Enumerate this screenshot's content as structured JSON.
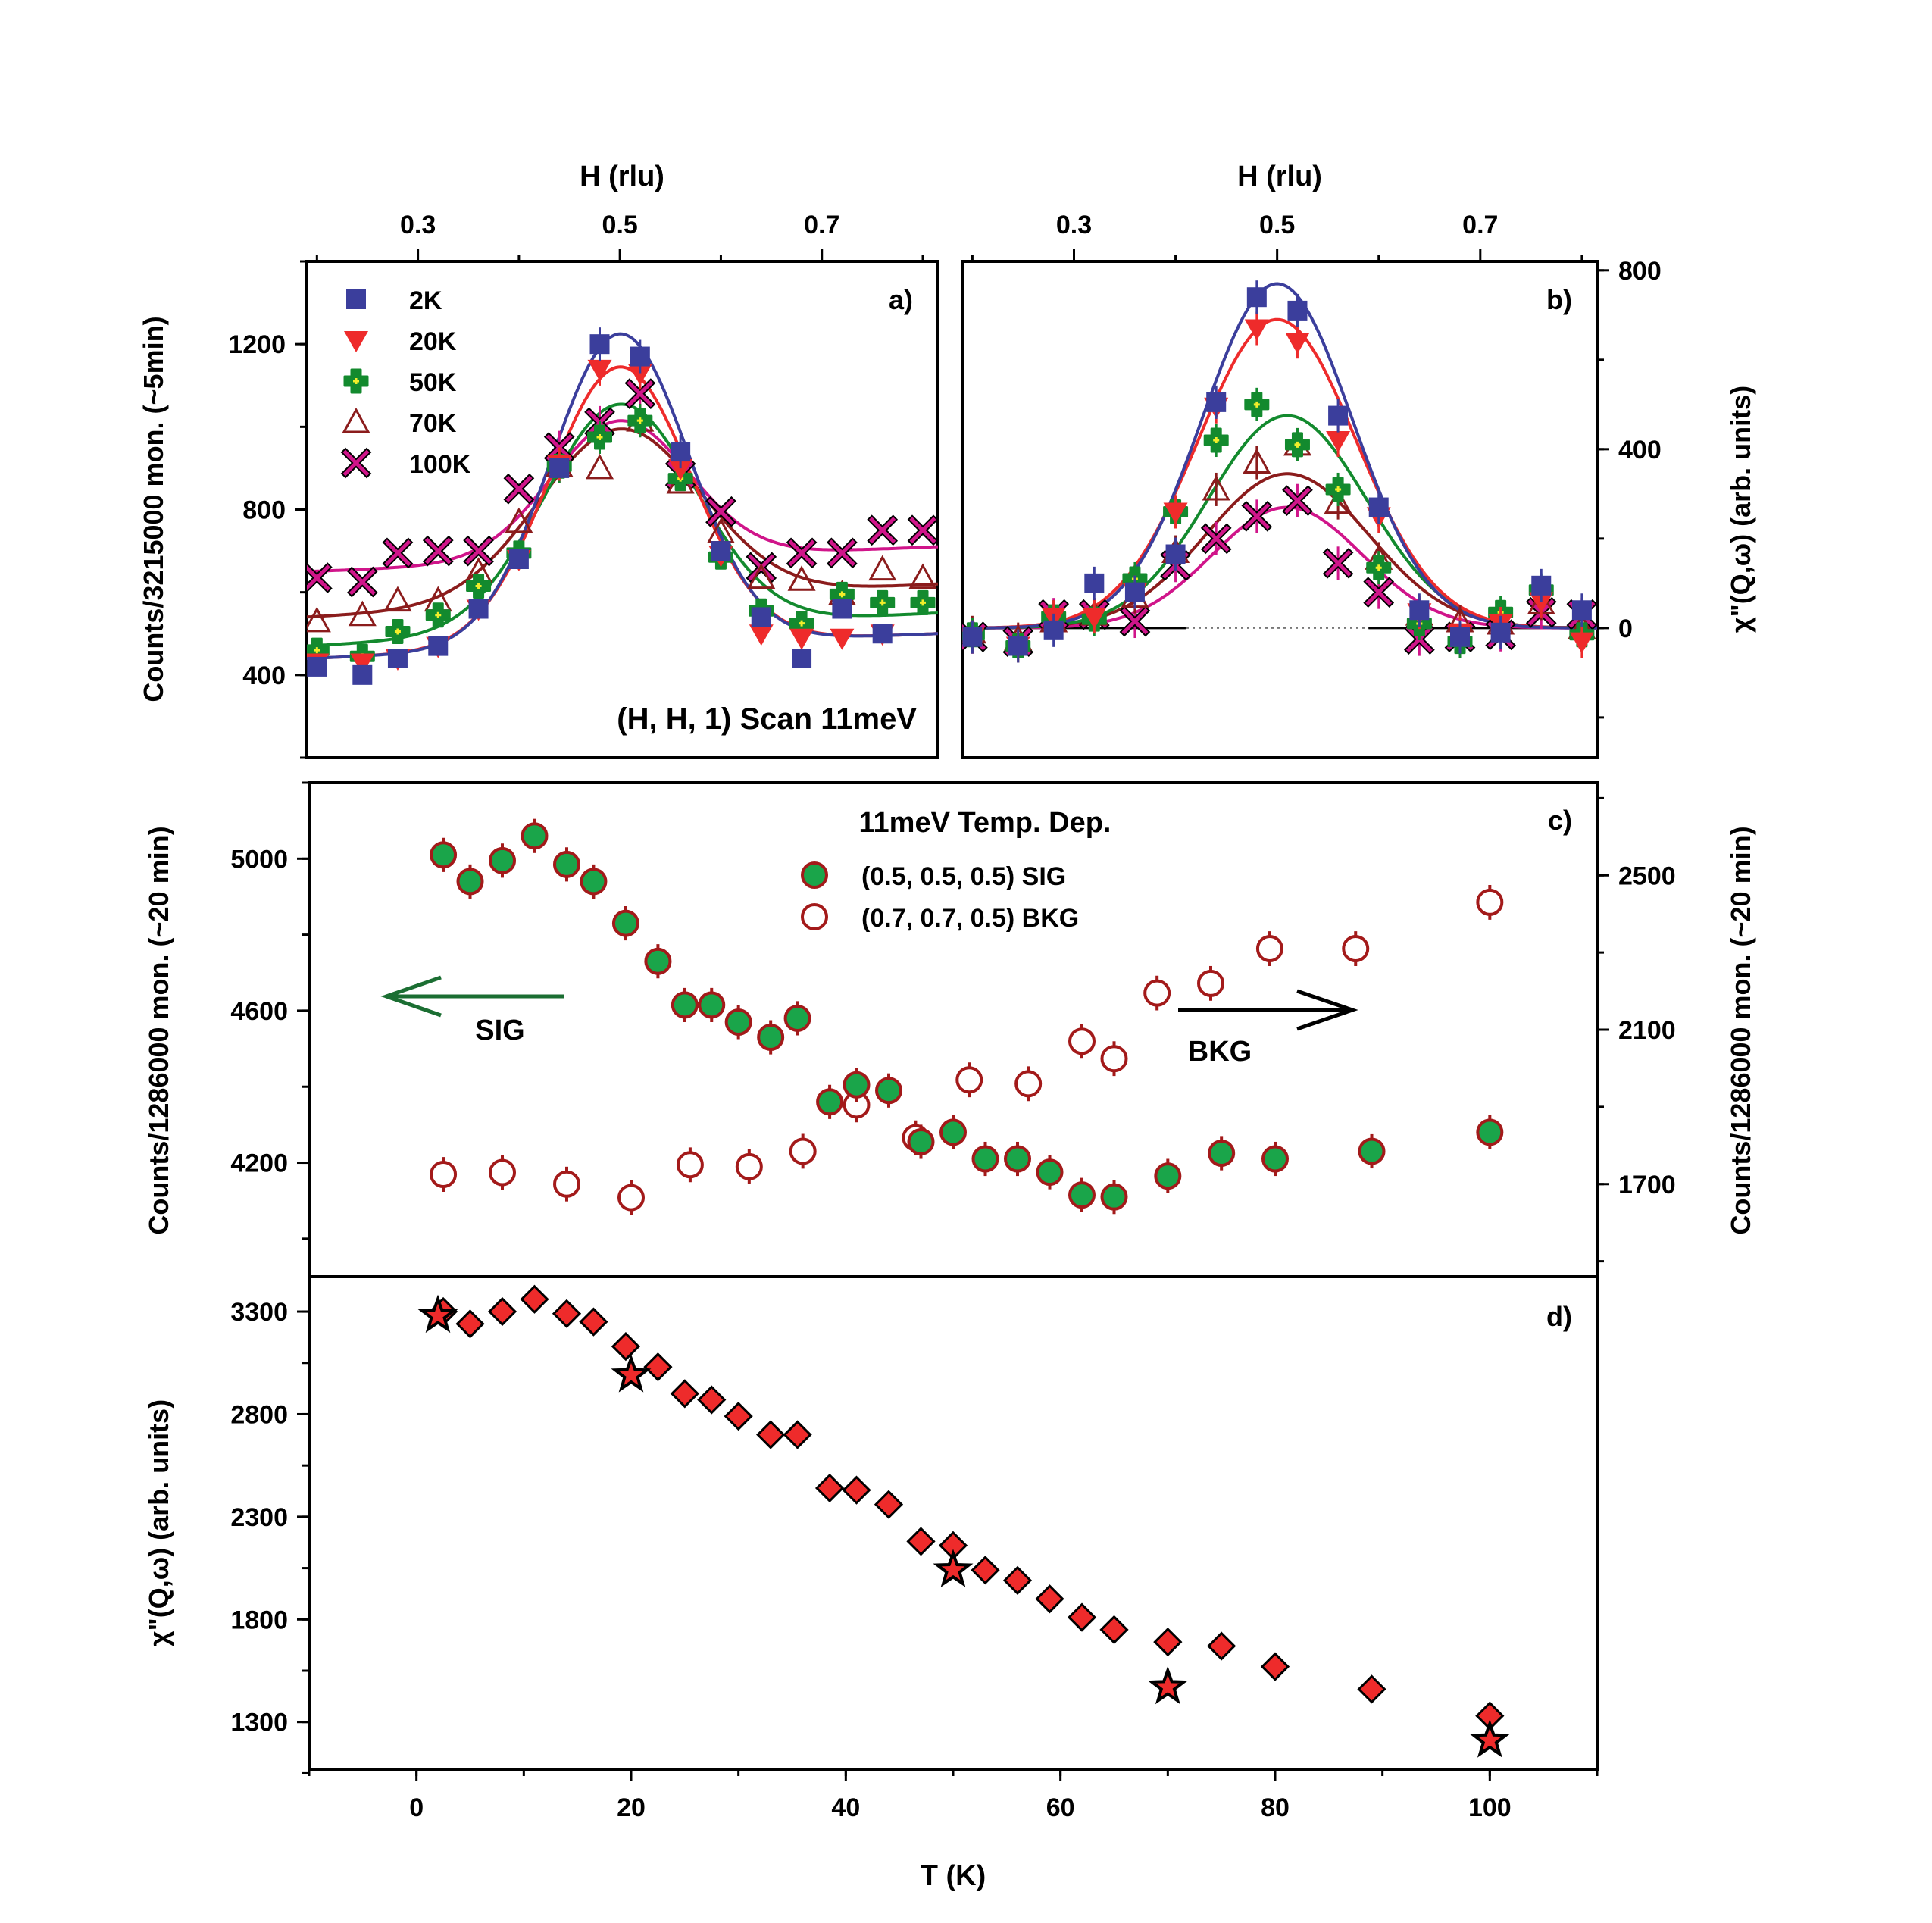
{
  "colors": {
    "k2": "#3b3e9c",
    "k20": "#ee2b2b",
    "k50": "#138a2e",
    "k70": "#8b1c1c",
    "k100": "#d0158a",
    "sig_fill": "#1aa54a",
    "bkg_stroke": "#a31a1a",
    "arrow_sig": "#1b6e32",
    "diamond": "#ee2b2b"
  },
  "chart_data": [
    {
      "panel": "a)",
      "type": "scatter",
      "title": "(H, H, 1) Scan 11meV",
      "xlabel": "H (rlu)",
      "ylabel": "Counts/3215000 mon. (~5min)",
      "xlim": [
        0.19,
        0.815
      ],
      "ylim": [
        200,
        1400
      ],
      "xticks": [
        "0.3",
        "0.5",
        "0.7"
      ],
      "yticks": [
        "400",
        "800",
        "1200"
      ],
      "legend": [
        "2K",
        "20K",
        "50K",
        "70K",
        "100K"
      ],
      "legend_position": "top-left",
      "x": [
        0.2,
        0.245,
        0.28,
        0.32,
        0.36,
        0.4,
        0.44,
        0.48,
        0.52,
        0.56,
        0.6,
        0.64,
        0.68,
        0.72,
        0.76,
        0.8
      ],
      "series": [
        {
          "name": "2K",
          "marker": "square",
          "values": [
            420,
            400,
            440,
            470,
            560,
            680,
            900,
            1200,
            1170,
            940,
            700,
            540,
            440,
            560,
            500,
            null
          ],
          "fit": {
            "A": 755,
            "c": 0.5,
            "w": 0.068,
            "b0": 440,
            "b1": 60
          }
        },
        {
          "name": "20K",
          "marker": "triangle-down",
          "values": [
            430,
            430,
            440,
            470,
            560,
            680,
            910,
            1140,
            1130,
            900,
            690,
            500,
            490,
            490,
            500,
            null
          ],
          "fit": {
            "A": 675,
            "c": 0.5,
            "w": 0.07,
            "b0": 440,
            "b1": 60
          }
        },
        {
          "name": "50K",
          "marker": "plus-circle",
          "values": [
            460,
            445,
            505,
            545,
            615,
            695,
            905,
            975,
            1015,
            875,
            685,
            555,
            525,
            595,
            575,
            575
          ],
          "fit": {
            "A": 545,
            "c": 0.5,
            "w": 0.075,
            "b0": 470,
            "b1": 80
          }
        },
        {
          "name": "70K",
          "marker": "triangle-up",
          "values": [
            530,
            545,
            580,
            580,
            650,
            770,
            905,
            900,
            1015,
            865,
            745,
            635,
            630,
            595,
            655,
            635
          ],
          "fit": {
            "A": 415,
            "c": 0.5,
            "w": 0.08,
            "b0": 540,
            "b1": 80
          }
        },
        {
          "name": "100K",
          "marker": "x-square",
          "values": [
            635,
            625,
            695,
            700,
            700,
            850,
            950,
            1010,
            1080,
            885,
            795,
            660,
            695,
            695,
            750,
            750
          ],
          "fit": {
            "A": 335,
            "c": 0.5,
            "w": 0.068,
            "b0": 650,
            "b1": 60
          }
        }
      ]
    },
    {
      "panel": "b)",
      "type": "scatter",
      "xlabel": "H (rlu)",
      "ylabel": "χ\"(Q,ω) (arb. units)",
      "xlim": [
        0.19,
        0.815
      ],
      "ylim": [
        -290,
        820
      ],
      "xticks": [
        "0.3",
        "0.5",
        "0.7"
      ],
      "yticks": [
        "0",
        "400",
        "800"
      ],
      "x": [
        0.2,
        0.245,
        0.28,
        0.32,
        0.36,
        0.4,
        0.44,
        0.48,
        0.52,
        0.56,
        0.6,
        0.64,
        0.68,
        0.72,
        0.76,
        0.8
      ],
      "series": [
        {
          "name": "2K",
          "marker": "square",
          "values": [
            -20,
            -40,
            -5,
            100,
            80,
            165,
            505,
            740,
            710,
            475,
            270,
            40,
            -20,
            -10,
            95,
            40
          ],
          "fit": {
            "A": 770,
            "c": 0.5,
            "w": 0.074
          }
        },
        {
          "name": "20K",
          "marker": "triangle-down",
          "values": [
            -20,
            -40,
            25,
            25,
            80,
            260,
            495,
            670,
            640,
            420,
            250,
            35,
            -10,
            10,
            60,
            -30
          ],
          "fit": {
            "A": 690,
            "c": 0.5,
            "w": 0.078
          }
        },
        {
          "name": "50K",
          "marker": "plus-circle",
          "values": [
            -15,
            -40,
            25,
            20,
            110,
            260,
            420,
            500,
            410,
            310,
            135,
            10,
            -30,
            35,
            85,
            -15
          ],
          "fit": {
            "A": 475,
            "c": 0.51,
            "w": 0.078
          }
        },
        {
          "name": "70K",
          "marker": "triangle-up",
          "values": [
            -10,
            -25,
            15,
            30,
            70,
            170,
            310,
            370,
            410,
            280,
            155,
            30,
            15,
            10,
            55,
            0
          ],
          "fit": {
            "A": 345,
            "c": 0.51,
            "w": 0.08
          }
        },
        {
          "name": "100K",
          "marker": "x-square",
          "values": [
            -20,
            -30,
            30,
            30,
            15,
            140,
            200,
            250,
            285,
            145,
            80,
            -25,
            -20,
            -15,
            35,
            30
          ],
          "fit": {
            "A": 270,
            "c": 0.51,
            "w": 0.074
          }
        }
      ]
    },
    {
      "panel": "c)",
      "type": "scatter",
      "title": "11meV Temp. Dep.",
      "xlabel": "T (K)",
      "ylabel": "Counts/1286000 mon. (~20 min)",
      "ylabel_right": "Counts/1286000 mon. (~20 min)",
      "xlim": [
        -10,
        110
      ],
      "ylim": [
        3900,
        5200
      ],
      "ylim_right": [
        1460,
        2740
      ],
      "yticks": [
        "4200",
        "4600",
        "5000"
      ],
      "yticks_right": [
        "1700",
        "2100",
        "2500"
      ],
      "sig_arrow_label": "SIG",
      "bkg_arrow_label": "BKG",
      "series": [
        {
          "name": "(0.5, 0.5, 0.5) SIG",
          "axis": "left",
          "err": 45,
          "x": [
            2.5,
            5,
            8,
            11,
            14,
            16.5,
            19.5,
            22.5,
            25,
            27.5,
            30,
            33,
            35.5,
            38.5,
            41,
            44,
            47,
            50,
            53,
            56,
            59,
            62,
            65,
            70,
            75,
            80,
            89,
            100
          ],
          "values": [
            5010,
            4940,
            4995,
            5060,
            4985,
            4940,
            4830,
            4730,
            4615,
            4615,
            4570,
            4530,
            4580,
            4360,
            4405,
            4390,
            4255,
            4280,
            4210,
            4210,
            4175,
            4115,
            4110,
            4165,
            4225,
            4210,
            4230,
            4280
          ]
        },
        {
          "name": "(0.7, 0.7, 0.5) BKG",
          "axis": "right",
          "err": 45,
          "x": [
            2.5,
            8,
            14,
            20,
            25.5,
            31,
            36,
            41,
            46.5,
            51.5,
            57,
            62,
            65,
            69,
            74,
            79.5,
            87.5,
            100
          ],
          "values": [
            1725,
            1730,
            1700,
            1665,
            1750,
            1745,
            1785,
            1905,
            1820,
            1970,
            1960,
            2070,
            2025,
            2195,
            2220,
            2310,
            2310,
            2430
          ]
        }
      ]
    },
    {
      "panel": "d)",
      "type": "scatter",
      "xlabel": "T (K)",
      "ylabel": "χ\"(Q,ω) (arb. units)",
      "xlim": [
        -10,
        110
      ],
      "ylim": [
        1070,
        3470
      ],
      "xticks": [
        "0",
        "20",
        "40",
        "60",
        "80",
        "100"
      ],
      "yticks": [
        "1300",
        "1800",
        "2300",
        "2800",
        "3300"
      ],
      "series": [
        {
          "name": "diamonds",
          "marker": "diamond",
          "x": [
            2.5,
            5,
            8,
            11,
            14,
            16.5,
            19.5,
            22.5,
            25,
            27.5,
            30,
            33,
            35.5,
            38.5,
            41,
            44,
            47,
            50,
            53,
            56,
            59,
            62,
            65,
            70,
            75,
            80,
            89,
            100
          ],
          "values": [
            3300,
            3240,
            3300,
            3360,
            3290,
            3250,
            3130,
            3030,
            2900,
            2870,
            2790,
            2700,
            2700,
            2440,
            2430,
            2360,
            2180,
            2160,
            2040,
            1990,
            1900,
            1810,
            1750,
            1690,
            1670,
            1570,
            1460,
            1330
          ]
        },
        {
          "name": "stars",
          "marker": "star",
          "x": [
            2,
            20,
            50,
            70,
            100
          ],
          "values": [
            3280,
            2990,
            2040,
            1470,
            1210
          ]
        }
      ]
    }
  ]
}
